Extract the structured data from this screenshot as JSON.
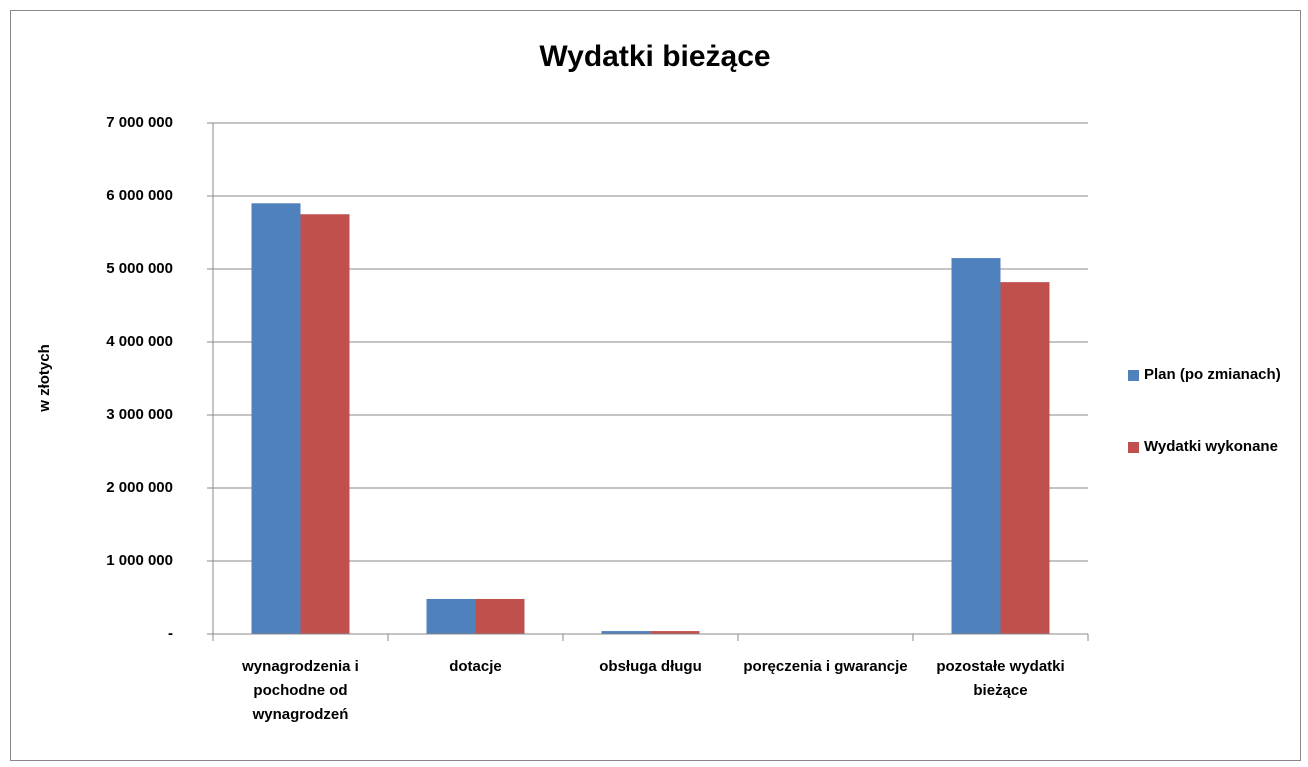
{
  "chart_data": {
    "type": "bar",
    "title": "Wydatki bieżące",
    "y_label": "w złotych",
    "categories": [
      "wynagrodzenia i pochodne od wynagrodzeń",
      "dotacje",
      "obsługa długu",
      "poręczenia i gwarancje",
      "pozostałe wydatki bieżące"
    ],
    "series": [
      {
        "name": "Plan (po zmianach)",
        "color": "#4f81bd",
        "values": [
          5900000,
          480000,
          40000,
          0,
          5150000
        ]
      },
      {
        "name": "Wydatki wykonane",
        "color": "#c0504d",
        "values": [
          5750000,
          480000,
          40000,
          0,
          4820000
        ]
      }
    ],
    "ylim": [
      0,
      7000000
    ],
    "yticks": [
      {
        "value": 0,
        "label": "-"
      },
      {
        "value": 1000000,
        "label": "1 000 000"
      },
      {
        "value": 2000000,
        "label": "2 000 000"
      },
      {
        "value": 3000000,
        "label": "3 000 000"
      },
      {
        "value": 4000000,
        "label": "4 000 000"
      },
      {
        "value": 5000000,
        "label": "5 000 000"
      },
      {
        "value": 6000000,
        "label": "6 000 000"
      },
      {
        "value": 7000000,
        "label": "7 000 000"
      }
    ],
    "grid": true,
    "legend": "right"
  }
}
